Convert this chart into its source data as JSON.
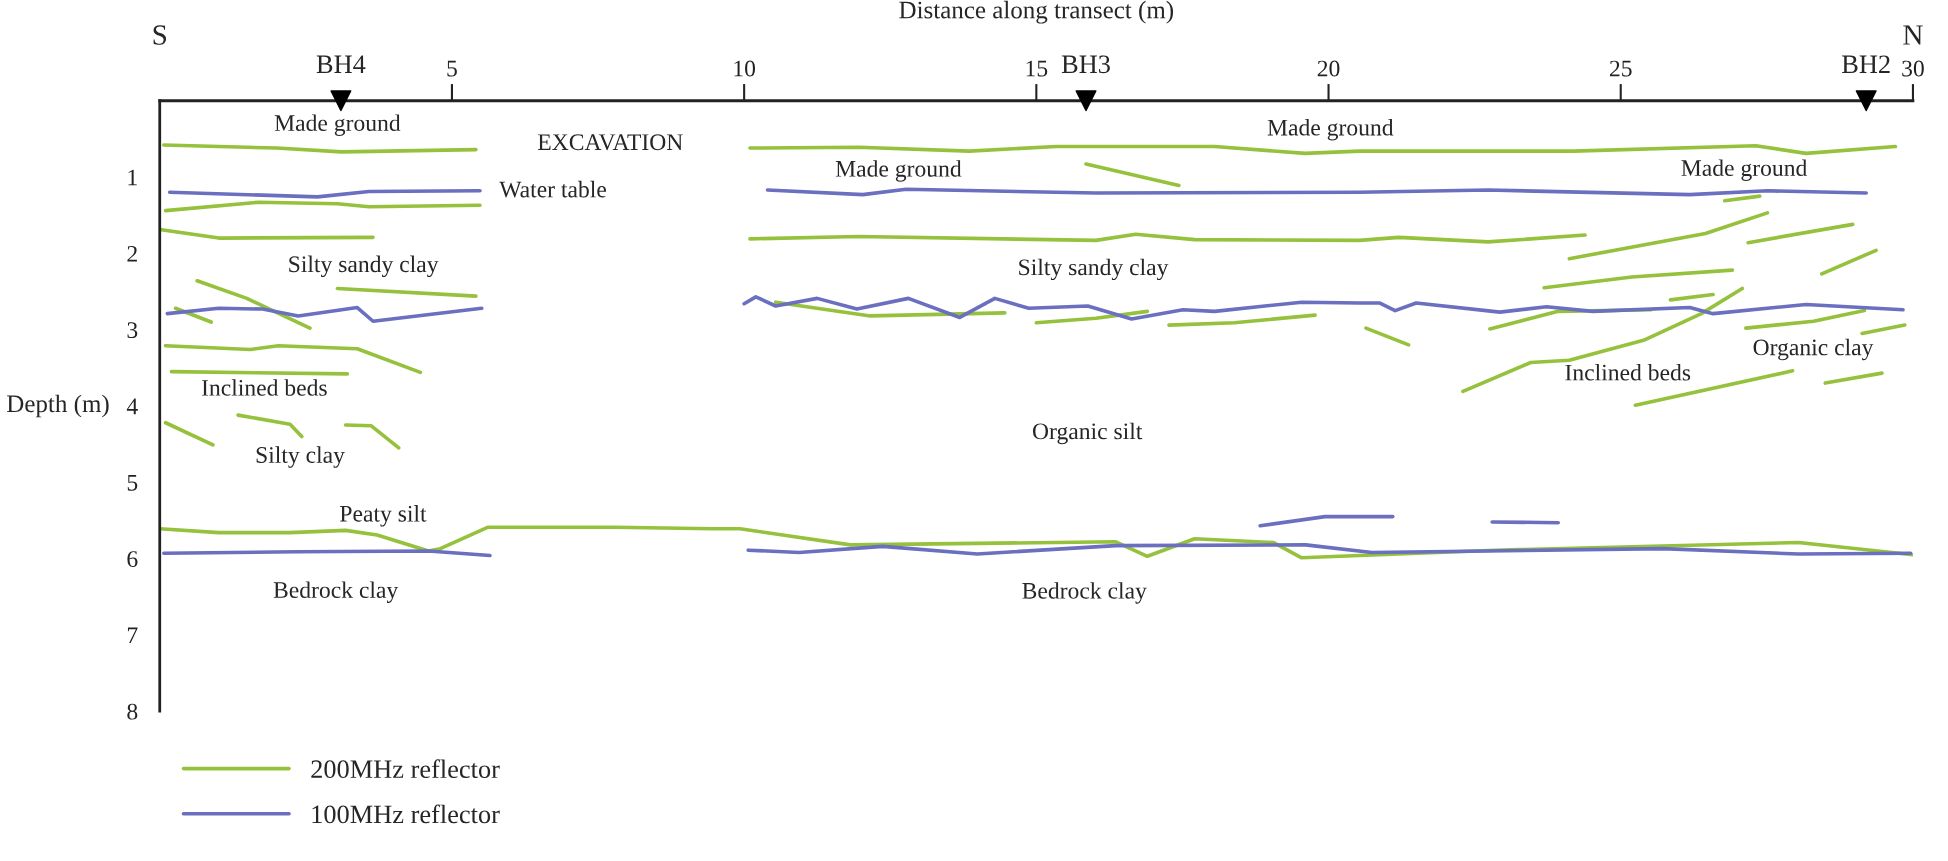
{
  "chart_data": {
    "type": "line",
    "xlabel": "Distance along transect (m)",
    "ylabel": "Depth (m)",
    "xlim": [
      0,
      30
    ],
    "ylim": [
      8,
      0
    ],
    "xticks": [
      5,
      10,
      15,
      20,
      25,
      30
    ],
    "yticks": [
      1,
      2,
      3,
      4,
      5,
      6,
      7,
      8
    ],
    "grid": false,
    "legend": "bottom left",
    "marker": "none",
    "line_style": "solid",
    "series": [
      {
        "name": "200MHz reflector",
        "color": "#95c13d",
        "x": [
          0.07,
          2.0,
          3.11,
          5.41,
          null,
          0.1,
          1.69,
          3.04,
          3.58,
          5.48,
          null,
          0.03,
          1.01,
          3.65,
          null,
          3.04,
          5.41,
          null,
          0.64,
          1.49,
          2.57,
          null,
          0.27,
          0.88,
          null,
          0.1,
          1.55,
          2.03,
          3.38,
          4.46,
          null,
          0.2,
          3.21,
          null,
          0.1,
          0.91,
          null,
          1.34,
          2.23,
          2.43,
          null,
          3.18,
          3.62,
          4.09,
          null,
          10.1,
          11.96,
          13.85,
          15.34,
          18.05,
          19.6,
          20.53,
          24.19,
          27.31,
          28.17,
          29.7,
          null,
          15.85,
          17.44,
          null,
          10.1,
          11.96,
          16.02,
          16.7,
          17.71,
          20.53,
          21.2,
          22.73,
          24.39,
          null,
          10.54,
          12.16,
          14.46,
          null,
          15.0,
          16.02,
          16.9,
          null,
          17.27,
          18.39,
          19.77,
          null,
          20.64,
          21.37,
          null,
          24.12,
          26.45,
          27.51,
          null,
          27.18,
          28.97,
          null,
          26.78,
          27.38,
          null,
          28.44,
          29.37,
          null,
          23.69,
          25.19,
          26.91,
          null,
          25.85,
          26.58,
          null,
          22.76,
          23.93,
          25.52,
          null,
          22.3,
          23.46,
          24.12,
          25.39,
          26.38,
          27.08,
          null,
          27.14,
          28.3,
          29.17,
          null,
          29.13,
          29.86,
          null,
          25.25,
          27.94,
          null,
          28.5,
          29.47,
          null,
          0.0,
          1.01,
          2.23,
          3.18,
          3.72,
          4.6,
          4.8,
          5.61,
          7.78,
          9.47,
          9.93,
          11.82,
          16.36,
          16.9,
          17.71,
          19.06,
          19.54,
          20.53,
          22.86,
          28.04,
          30.0
        ],
        "values": [
          0.58,
          0.62,
          0.67,
          0.64,
          null,
          1.44,
          1.33,
          1.35,
          1.39,
          1.37,
          null,
          1.69,
          1.8,
          1.79,
          null,
          2.46,
          2.56,
          null,
          2.36,
          2.59,
          2.98,
          null,
          2.72,
          2.9,
          null,
          3.21,
          3.26,
          3.21,
          3.25,
          3.56,
          null,
          3.55,
          3.58,
          null,
          4.22,
          4.51,
          null,
          4.12,
          4.24,
          4.4,
          null,
          4.25,
          4.26,
          4.55,
          null,
          0.62,
          0.61,
          0.66,
          0.6,
          0.6,
          0.69,
          0.66,
          0.66,
          0.59,
          0.69,
          0.6,
          null,
          0.83,
          1.11,
          null,
          1.81,
          1.78,
          1.83,
          1.75,
          1.82,
          1.83,
          1.79,
          1.85,
          1.76,
          null,
          2.64,
          2.82,
          2.78,
          null,
          2.91,
          2.85,
          2.76,
          null,
          2.94,
          2.91,
          2.81,
          null,
          2.98,
          3.2,
          null,
          2.07,
          1.74,
          1.47,
          null,
          1.86,
          1.62,
          null,
          1.31,
          1.25,
          null,
          2.27,
          1.96,
          null,
          2.45,
          2.31,
          2.22,
          null,
          2.61,
          2.54,
          null,
          2.99,
          2.76,
          2.74,
          null,
          3.81,
          3.43,
          3.4,
          3.14,
          2.79,
          2.46,
          null,
          2.98,
          2.89,
          2.75,
          null,
          3.05,
          2.94,
          null,
          3.99,
          3.54,
          null,
          3.7,
          3.57,
          null,
          5.61,
          5.66,
          5.66,
          5.63,
          5.69,
          5.9,
          5.87,
          5.59,
          5.59,
          5.61,
          5.61,
          5.82,
          5.78,
          5.97,
          5.74,
          5.79,
          5.99,
          5.96,
          5.89,
          5.79,
          5.95
        ]
      },
      {
        "name": "100MHz reflector",
        "color": "#6a6fc0",
        "x": [
          0.17,
          2.7,
          3.58,
          5.48,
          null,
          0.13,
          1.01,
          1.76,
          2.37,
          3.38,
          3.65,
          4.4,
          5.51,
          null,
          10.4,
          12.03,
          12.77,
          16.02,
          20.53,
          22.73,
          26.18,
          27.51,
          29.2,
          null,
          10.0,
          10.2,
          10.54,
          11.25,
          11.93,
          12.81,
          13.69,
          14.29,
          14.87,
          15.88,
          16.63,
          17.51,
          18.05,
          19.54,
          20.53,
          20.87,
          21.14,
          21.5,
          22.93,
          23.73,
          24.52,
          26.18,
          26.58,
          28.17,
          29.83,
          null,
          0.07,
          2.37,
          4.6,
          5.65,
          null,
          10.07,
          10.94,
          12.37,
          13.99,
          16.36,
          19.61,
          20.74,
          25.72,
          28.04,
          29.96,
          null,
          18.83,
          19.94,
          21.1,
          null,
          22.8,
          23.93
        ],
        "values": [
          1.2,
          1.26,
          1.19,
          1.18,
          null,
          2.79,
          2.72,
          2.73,
          2.82,
          2.71,
          2.89,
          2.82,
          2.72,
          null,
          1.17,
          1.23,
          1.16,
          1.21,
          1.2,
          1.17,
          1.23,
          1.18,
          1.21,
          null,
          2.66,
          2.57,
          2.69,
          2.59,
          2.73,
          2.59,
          2.84,
          2.59,
          2.72,
          2.69,
          2.86,
          2.74,
          2.76,
          2.64,
          2.65,
          2.65,
          2.75,
          2.65,
          2.77,
          2.7,
          2.76,
          2.71,
          2.79,
          2.67,
          2.74,
          null,
          5.93,
          5.91,
          5.9,
          5.96,
          null,
          5.89,
          5.92,
          5.84,
          5.94,
          5.83,
          5.82,
          5.92,
          5.87,
          5.94,
          5.93,
          null,
          5.57,
          5.45,
          5.45,
          null,
          5.52,
          5.53
        ]
      },
      {
        "type": "scatter",
        "marker": "triangle",
        "color": "#000000",
        "x": [
          3.1,
          15.85,
          29.2
        ],
        "values": [
          0,
          0,
          0
        ]
      }
    ],
    "annotations": [
      "S",
      "N",
      {
        "text": "BH4",
        "x": 3.1,
        "y": 0
      },
      {
        "text": "BH3",
        "x": 15.85,
        "y": 0
      },
      {
        "text": "BH2",
        "x": 29.2,
        "y": 0
      },
      "Made ground",
      "EXCAVATION",
      "Water table",
      "Silty sandy clay",
      "Inclined beds",
      "Silty clay",
      "Made ground",
      "Made ground",
      "Silty sandy clay",
      "Organic silt",
      "Made ground",
      "Inclined beds",
      "Organic clay",
      "Peaty silt",
      "Bedrock clay",
      "Bedrock clay"
    ]
  }
}
